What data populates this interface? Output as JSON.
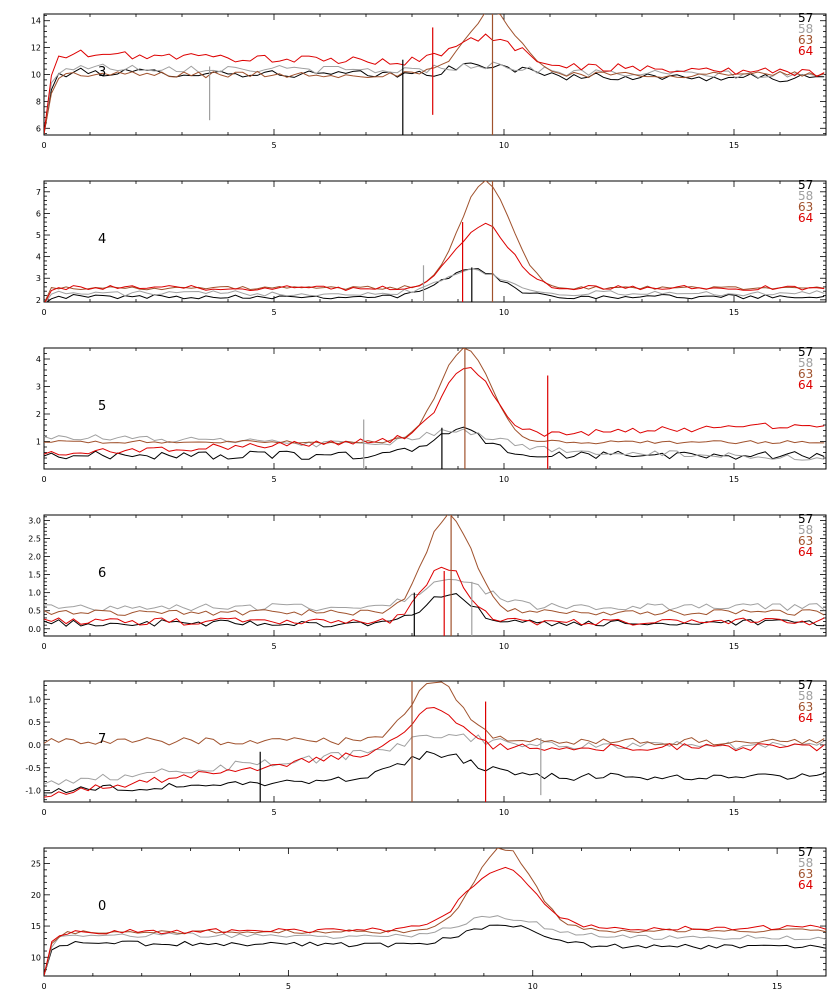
{
  "chart_data": [
    {
      "type": "line",
      "panel_label": "3",
      "xlim": [
        0,
        17
      ],
      "ylim": [
        5.5,
        14.5
      ],
      "xticks": [
        0,
        5,
        10,
        15
      ],
      "xtick_labels": [
        "0",
        "5",
        "10",
        "15"
      ],
      "yticks": [
        6,
        8,
        10,
        12,
        14
      ],
      "ytick_labels": [
        "6",
        "8",
        "10",
        "12",
        "14"
      ],
      "legend": [
        "57",
        "58",
        "63",
        "64"
      ],
      "series": [
        {
          "name": "57",
          "color": "#000000",
          "baseline": 10.2,
          "noise": 0.3,
          "peak": 0.8,
          "center": 9.6,
          "width": 0.7,
          "rise": 0.12,
          "drift": -0.5
        },
        {
          "name": "58",
          "color": "#a0a0a0",
          "baseline": 10.6,
          "noise": 0.3,
          "peak": 0.5,
          "center": 9.6,
          "width": 0.8,
          "rise": 0.12,
          "drift": -0.7
        },
        {
          "name": "63",
          "color": "#a0522d",
          "baseline": 10.0,
          "noise": 0.25,
          "peak": 4.6,
          "center": 9.75,
          "width": 0.55,
          "rise": 0.12,
          "drift": 0.0
        },
        {
          "name": "64",
          "color": "#dd0000",
          "baseline": 11.6,
          "noise": 0.3,
          "peak": 2.0,
          "center": 9.6,
          "width": 0.7,
          "rise": 0.12,
          "drift": -1.5
        }
      ],
      "vlines": [
        {
          "x": 3.6,
          "y0": 6.6,
          "y1": 10.6,
          "color": "#a0a0a0"
        },
        {
          "x": 7.8,
          "y0": 5.5,
          "y1": 11.1,
          "color": "#000000"
        },
        {
          "x": 8.45,
          "y0": 7.0,
          "y1": 13.5,
          "color": "#dd0000"
        },
        {
          "x": 9.75,
          "y0": 5.5,
          "y1": 14.5,
          "color": "#a0522d"
        }
      ]
    },
    {
      "type": "line",
      "panel_label": "4",
      "xlim": [
        0,
        17
      ],
      "ylim": [
        1.9,
        7.5
      ],
      "xticks": [
        0,
        5,
        10,
        15
      ],
      "xtick_labels": [
        "0",
        "5",
        "10",
        "15"
      ],
      "yticks": [
        2,
        3,
        4,
        5,
        6,
        7
      ],
      "ytick_labels": [
        "2",
        "3",
        "4",
        "5",
        "6",
        "7"
      ],
      "legend": [
        "57",
        "58",
        "63",
        "64"
      ],
      "series": [
        {
          "name": "57",
          "color": "#000000",
          "baseline": 2.15,
          "noise": 0.1,
          "peak": 1.3,
          "center": 9.3,
          "width": 0.6,
          "rise": 0.05,
          "drift": 0.0
        },
        {
          "name": "58",
          "color": "#a0a0a0",
          "baseline": 2.3,
          "noise": 0.12,
          "peak": 1.1,
          "center": 9.3,
          "width": 0.65,
          "rise": 0.05,
          "drift": 0.0
        },
        {
          "name": "63",
          "color": "#a0522d",
          "baseline": 2.55,
          "noise": 0.08,
          "peak": 4.9,
          "center": 9.6,
          "width": 0.55,
          "rise": 0.05,
          "drift": 0.0
        },
        {
          "name": "64",
          "color": "#dd0000",
          "baseline": 2.55,
          "noise": 0.12,
          "peak": 2.9,
          "center": 9.55,
          "width": 0.6,
          "rise": 0.05,
          "drift": 0.0
        }
      ],
      "vlines": [
        {
          "x": 8.25,
          "y0": 1.9,
          "y1": 3.6,
          "color": "#a0a0a0"
        },
        {
          "x": 9.1,
          "y0": 1.9,
          "y1": 5.6,
          "color": "#dd0000"
        },
        {
          "x": 9.3,
          "y0": 1.9,
          "y1": 3.5,
          "color": "#000000"
        },
        {
          "x": 9.75,
          "y0": 1.9,
          "y1": 7.5,
          "color": "#a0522d"
        }
      ]
    },
    {
      "type": "line",
      "panel_label": "5",
      "xlim": [
        0,
        17
      ],
      "ylim": [
        0.0,
        4.4
      ],
      "xticks": [
        0,
        5,
        10,
        15
      ],
      "xtick_labels": [
        "0",
        "5",
        "10",
        "15"
      ],
      "yticks": [
        1,
        2,
        3,
        4
      ],
      "ytick_labels": [
        "1",
        "2",
        "3",
        "4"
      ],
      "legend": [
        "57",
        "58",
        "63",
        "64"
      ],
      "series": [
        {
          "name": "57",
          "color": "#000000",
          "baseline": 0.5,
          "noise": 0.15,
          "peak": 0.9,
          "center": 9.0,
          "width": 0.6,
          "rise": 0.0,
          "drift": 0.0
        },
        {
          "name": "58",
          "color": "#a0a0a0",
          "baseline": 1.2,
          "noise": 0.12,
          "peak": 0.6,
          "center": 9.0,
          "width": 0.8,
          "rise": 0.0,
          "drift": -0.8
        },
        {
          "name": "63",
          "color": "#a0522d",
          "baseline": 0.98,
          "noise": 0.06,
          "peak": 3.4,
          "center": 9.15,
          "width": 0.55,
          "rise": 0.0,
          "drift": 0.0
        },
        {
          "name": "64",
          "color": "#dd0000",
          "baseline": 0.55,
          "noise": 0.12,
          "peak": 2.5,
          "center": 9.2,
          "width": 0.55,
          "rise": 0.0,
          "drift": 1.1
        }
      ],
      "vlines": [
        {
          "x": 6.95,
          "y0": 0.0,
          "y1": 1.8,
          "color": "#a0a0a0"
        },
        {
          "x": 8.65,
          "y0": 0.0,
          "y1": 1.5,
          "color": "#000000"
        },
        {
          "x": 9.15,
          "y0": 0.0,
          "y1": 4.4,
          "color": "#a0522d"
        },
        {
          "x": 10.95,
          "y0": 0.0,
          "y1": 3.4,
          "color": "#dd0000"
        }
      ]
    },
    {
      "type": "line",
      "panel_label": "6",
      "xlim": [
        0,
        17
      ],
      "ylim": [
        -0.2,
        3.15
      ],
      "xticks": [
        0,
        5,
        10,
        15
      ],
      "xtick_labels": [
        "0",
        "5",
        "10",
        "15"
      ],
      "yticks": [
        0.0,
        0.5,
        1.0,
        1.5,
        2.0,
        2.5,
        3.0
      ],
      "ytick_labels": [
        "0.0",
        "0.5",
        "1.0",
        "1.5",
        "2.0",
        "2.5",
        "3.0"
      ],
      "legend": [
        "57",
        "58",
        "63",
        "64"
      ],
      "series": [
        {
          "name": "57",
          "color": "#000000",
          "baseline": 0.15,
          "noise": 0.1,
          "peak": 0.8,
          "center": 8.8,
          "width": 0.5,
          "rise": 0.0,
          "drift": 0.0
        },
        {
          "name": "58",
          "color": "#a0a0a0",
          "baseline": 0.6,
          "noise": 0.1,
          "peak": 0.75,
          "center": 8.9,
          "width": 0.7,
          "rise": 0.0,
          "drift": 0.0
        },
        {
          "name": "63",
          "color": "#a0522d",
          "baseline": 0.45,
          "noise": 0.08,
          "peak": 2.7,
          "center": 8.8,
          "width": 0.5,
          "rise": 0.0,
          "drift": 0.0
        },
        {
          "name": "64",
          "color": "#dd0000",
          "baseline": 0.2,
          "noise": 0.1,
          "peak": 1.55,
          "center": 8.7,
          "width": 0.45,
          "rise": 0.0,
          "drift": 0.0
        }
      ],
      "vlines": [
        {
          "x": 8.05,
          "y0": -0.2,
          "y1": 1.0,
          "color": "#000000"
        },
        {
          "x": 8.7,
          "y0": -0.2,
          "y1": 1.6,
          "color": "#dd0000"
        },
        {
          "x": 8.85,
          "y0": -0.2,
          "y1": 3.15,
          "color": "#a0522d"
        },
        {
          "x": 9.3,
          "y0": -0.2,
          "y1": 1.3,
          "color": "#a0a0a0"
        }
      ]
    },
    {
      "type": "line",
      "panel_label": "7",
      "xlim": [
        0,
        17
      ],
      "ylim": [
        -1.25,
        1.4
      ],
      "xticks": [
        0,
        5,
        10,
        15
      ],
      "xtick_labels": [
        "0",
        "5",
        "10",
        "15"
      ],
      "yticks": [
        -1.0,
        -0.5,
        0.0,
        0.5,
        1.0
      ],
      "ytick_labels": [
        "-1.0",
        "-0.5",
        "0.0",
        "0.5",
        "1.0"
      ],
      "legend": [
        "57",
        "58",
        "63",
        "64"
      ],
      "series": [
        {
          "name": "57",
          "color": "#000000",
          "baseline": -1.0,
          "noise": 0.08,
          "peak": 0.5,
          "center": 8.5,
          "width": 0.8,
          "rise": 0.0,
          "drift": 0.3,
          "drift_end": 8.5
        },
        {
          "name": "58",
          "color": "#a0a0a0",
          "baseline": -0.8,
          "noise": 0.1,
          "peak": 0.25,
          "center": 8.5,
          "width": 0.8,
          "rise": 0.0,
          "drift": 0.8,
          "drift_end": 9.5
        },
        {
          "name": "63",
          "color": "#a0522d",
          "baseline": 0.08,
          "noise": 0.08,
          "peak": 1.3,
          "center": 8.5,
          "width": 0.55,
          "rise": 0.0,
          "drift": 0.0
        },
        {
          "name": "64",
          "color": "#dd0000",
          "baseline": -1.1,
          "noise": 0.08,
          "peak": 0.9,
          "center": 8.5,
          "width": 0.5,
          "rise": 0.0,
          "drift": 1.05,
          "drift_end": 8.0
        }
      ],
      "vlines": [
        {
          "x": 4.7,
          "y0": -1.25,
          "y1": -0.15,
          "color": "#000000"
        },
        {
          "x": 8.0,
          "y0": -1.25,
          "y1": 1.4,
          "color": "#a0522d"
        },
        {
          "x": 9.6,
          "y0": -1.25,
          "y1": 0.95,
          "color": "#dd0000"
        },
        {
          "x": 10.8,
          "y0": -1.1,
          "y1": 0.15,
          "color": "#a0a0a0"
        }
      ]
    },
    {
      "type": "line",
      "panel_label": "0",
      "xlim": [
        0,
        16
      ],
      "ylim": [
        7,
        27.5
      ],
      "xticks": [
        0,
        5,
        10,
        15
      ],
      "xtick_labels": [
        "0",
        "5",
        "10",
        "15"
      ],
      "yticks": [
        10,
        15,
        20,
        25
      ],
      "ytick_labels": [
        "10",
        "15",
        "20",
        "25"
      ],
      "legend": [
        "57",
        "58",
        "63",
        "64"
      ],
      "series": [
        {
          "name": "57",
          "color": "#000000",
          "baseline": 12.3,
          "noise": 0.4,
          "peak": 3.4,
          "center": 9.4,
          "width": 0.75,
          "rise": 0.12,
          "drift": -0.7
        },
        {
          "name": "58",
          "color": "#a0a0a0",
          "baseline": 13.6,
          "noise": 0.4,
          "peak": 3.2,
          "center": 9.3,
          "width": 0.8,
          "rise": 0.12,
          "drift": -0.5
        },
        {
          "name": "63",
          "color": "#a0522d",
          "baseline": 14.0,
          "noise": 0.3,
          "peak": 13.3,
          "center": 9.4,
          "width": 0.6,
          "rise": 0.12,
          "drift": 0.3
        },
        {
          "name": "64",
          "color": "#dd0000",
          "baseline": 14.0,
          "noise": 0.4,
          "peak": 9.7,
          "center": 9.35,
          "width": 0.7,
          "rise": 0.12,
          "drift": 0.8
        }
      ],
      "vlines": []
    }
  ],
  "colors": {
    "legend": [
      "#000000",
      "#a0a0a0",
      "#a0522d",
      "#dd0000"
    ]
  }
}
